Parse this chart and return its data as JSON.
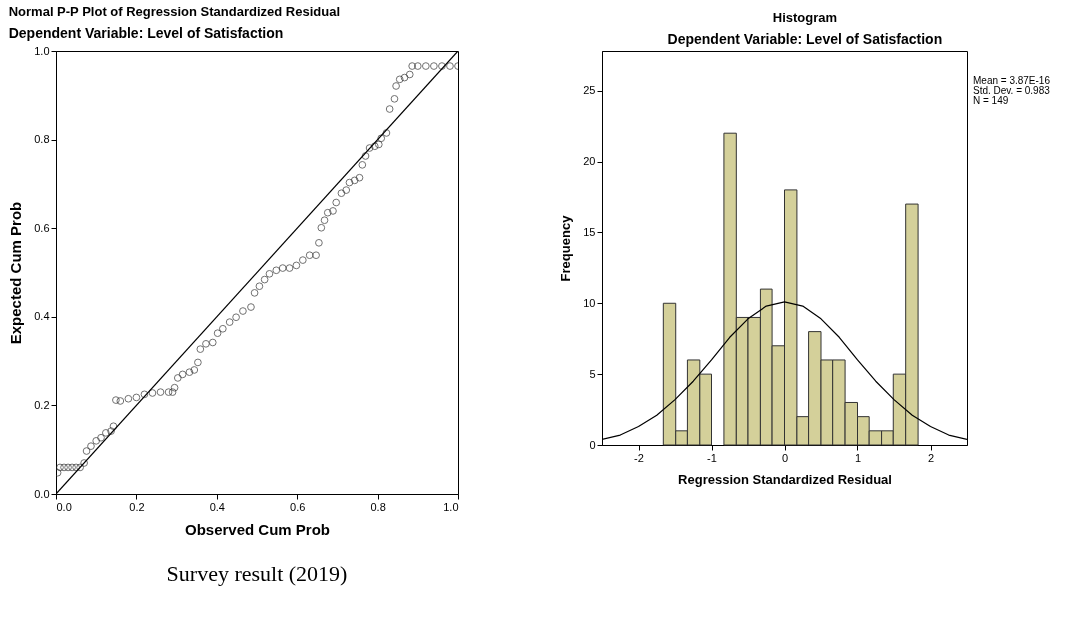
{
  "chart_data": [
    {
      "type": "scatter",
      "title": "Normal P-P Plot of Regression Standardized Residual",
      "subtitle": "Dependent Variable: Level of Satisfaction",
      "xlabel": "Observed Cum Prob",
      "ylabel": "Expected Cum Prob",
      "xlim": [
        0,
        1
      ],
      "ylim": [
        0,
        1
      ],
      "xticks": [
        {
          "value": 0,
          "label": "0.0"
        },
        {
          "value": 0.2,
          "label": "0.2"
        },
        {
          "value": 0.4,
          "label": "0.4"
        },
        {
          "value": 0.6,
          "label": "0.6"
        },
        {
          "value": 0.8,
          "label": "0.8"
        },
        {
          "value": 1,
          "label": "1.0"
        }
      ],
      "yticks": [
        {
          "value": 0,
          "label": "0.0"
        },
        {
          "value": 0.2,
          "label": "0.2"
        },
        {
          "value": 0.4,
          "label": "0.4"
        },
        {
          "value": 0.6,
          "label": "0.6"
        },
        {
          "value": 0.8,
          "label": "0.8"
        },
        {
          "value": 1,
          "label": "1.0"
        }
      ],
      "grid": false,
      "series": [
        {
          "marker": "circle",
          "color": "#333333",
          "x": [
            0.004,
            0.01,
            0.02,
            0.03,
            0.04,
            0.05,
            0.06,
            0.07,
            0.076,
            0.087,
            0.1,
            0.112,
            0.124,
            0.137,
            0.143,
            0.149,
            0.16,
            0.18,
            0.2,
            0.22,
            0.24,
            0.26,
            0.28,
            0.29,
            0.295,
            0.303,
            0.315,
            0.332,
            0.344,
            0.353,
            0.359,
            0.373,
            0.39,
            0.402,
            0.415,
            0.432,
            0.448,
            0.465,
            0.485,
            0.494,
            0.506,
            0.519,
            0.531,
            0.548,
            0.564,
            0.581,
            0.598,
            0.614,
            0.631,
            0.647,
            0.654,
            0.66,
            0.668,
            0.676,
            0.689,
            0.697,
            0.71,
            0.722,
            0.73,
            0.743,
            0.755,
            0.762,
            0.77,
            0.78,
            0.793,
            0.803,
            0.809,
            0.822,
            0.83,
            0.842,
            0.846,
            0.855,
            0.867,
            0.88,
            0.886,
            0.9,
            0.92,
            0.94,
            0.96,
            0.98,
            1.0
          ],
          "values": [
            0.048,
            0.06,
            0.06,
            0.06,
            0.06,
            0.06,
            0.06,
            0.07,
            0.097,
            0.108,
            0.12,
            0.127,
            0.138,
            0.142,
            0.153,
            0.212,
            0.21,
            0.215,
            0.218,
            0.225,
            0.228,
            0.23,
            0.23,
            0.23,
            0.24,
            0.262,
            0.27,
            0.275,
            0.28,
            0.297,
            0.327,
            0.339,
            0.342,
            0.363,
            0.373,
            0.388,
            0.399,
            0.413,
            0.422,
            0.454,
            0.469,
            0.484,
            0.497,
            0.505,
            0.51,
            0.51,
            0.516,
            0.528,
            0.539,
            0.539,
            0.567,
            0.601,
            0.618,
            0.635,
            0.639,
            0.658,
            0.679,
            0.686,
            0.703,
            0.708,
            0.714,
            0.743,
            0.763,
            0.781,
            0.785,
            0.789,
            0.803,
            0.815,
            0.869,
            0.892,
            0.921,
            0.936,
            0.94,
            0.947,
            0.966,
            0.966,
            0.966,
            0.966,
            0.966,
            0.966,
            0.966
          ]
        },
        {
          "type": "line",
          "color": "#000000",
          "x": [
            0,
            1
          ],
          "values": [
            0,
            1
          ]
        }
      ],
      "annotations": [
        "Survey result (2019)"
      ]
    },
    {
      "type": "histogram",
      "title": "Histogram",
      "subtitle": "Dependent Variable: Level of Satisfaction",
      "xlabel": "Regression Standardized Residual",
      "ylabel": "Frequency",
      "xlim": [
        -2.5,
        2.5
      ],
      "ylim": [
        0,
        27.8
      ],
      "xticks": [
        -2,
        -1,
        0,
        1,
        2
      ],
      "yticks": [
        0,
        5,
        10,
        15,
        20,
        25
      ],
      "grid": false,
      "series": [
        {
          "color": "#d4d09a",
          "bins": [
            -1.66,
            -1.49,
            -1.33,
            -1.16,
            -1.0,
            -0.83,
            -0.66,
            -0.5,
            -0.33,
            -0.17,
            0,
            0.17,
            0.33,
            0.5,
            0.66,
            0.83,
            1.0,
            1.16,
            1.33,
            1.49,
            1.66,
            1.83
          ],
          "values": [
            10,
            1,
            6,
            5,
            0,
            22,
            9,
            9,
            11,
            7,
            18,
            2,
            8,
            6,
            6,
            3,
            2,
            1,
            1,
            5,
            17
          ]
        },
        {
          "type": "line",
          "color": "#000000",
          "x": [
            -2.5,
            -2.25,
            -2,
            -1.75,
            -1.5,
            -1.25,
            -1,
            -0.75,
            -0.5,
            -0.25,
            0,
            0.25,
            0.5,
            0.75,
            1,
            1.25,
            1.5,
            1.75,
            2,
            2.25,
            2.5
          ],
          "values": [
            0.4,
            0.7,
            1.3,
            2.1,
            3.2,
            4.5,
            6.0,
            7.6,
            8.9,
            9.8,
            10.1,
            9.8,
            8.9,
            7.6,
            6.0,
            4.5,
            3.2,
            2.1,
            1.3,
            0.7,
            0.4
          ]
        }
      ],
      "annotations": [
        "Mean = 3.87E-16",
        "Std. Dev. = 0.983",
        "N = 149"
      ]
    }
  ]
}
